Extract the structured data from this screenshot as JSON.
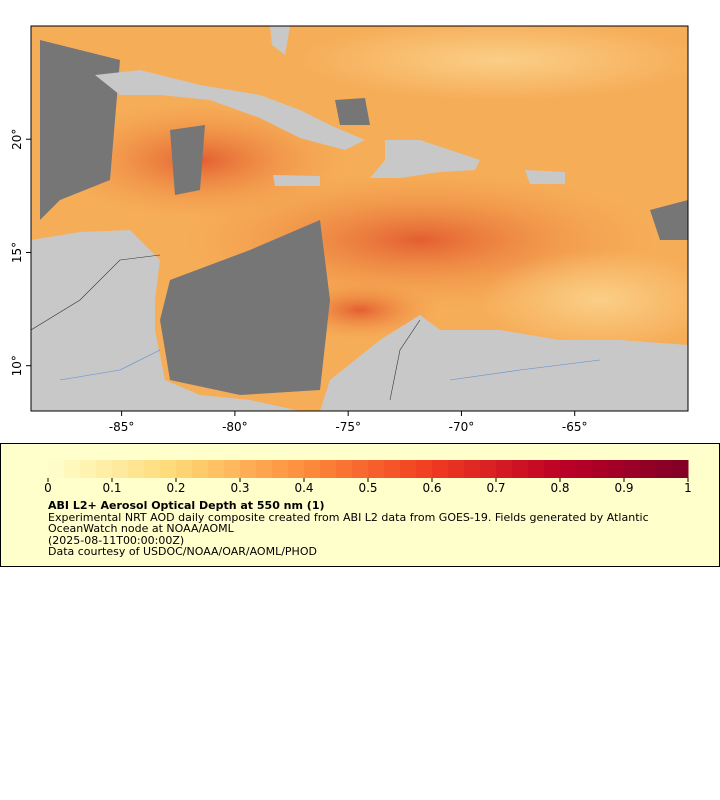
{
  "map": {
    "xlim": [
      -89,
      -60
    ],
    "ylim": [
      8,
      25
    ],
    "xticks": [
      {
        "value": -85,
        "label": "-85°"
      },
      {
        "value": -80,
        "label": "-80°"
      },
      {
        "value": -75,
        "label": "-75°"
      },
      {
        "value": -70,
        "label": "-70°"
      },
      {
        "value": -65,
        "label": "-65°"
      }
    ],
    "yticks": [
      {
        "value": 10,
        "label": "10°"
      },
      {
        "value": 15,
        "label": "15°"
      },
      {
        "value": 20,
        "label": "20°"
      }
    ]
  },
  "colorbar": {
    "lim": [
      0,
      1
    ],
    "ticks": [
      0,
      0.1,
      0.2,
      0.3,
      0.4,
      0.5,
      0.6,
      0.7,
      0.8,
      0.9,
      1
    ],
    "title": "ABI L2+ Aerosol Optical Depth at 550 nm (1)",
    "description": "Experimental NRT AOD daily composite created from ABI L2 data from GOES-19. Fields generated by Atlantic OceanWatch node at NOAA/AOML",
    "time": "(2025-08-11T00:00:00Z)",
    "credit": "Data courtesy of USDOC/NOAA/OAR/AOML/PHOD"
  }
}
